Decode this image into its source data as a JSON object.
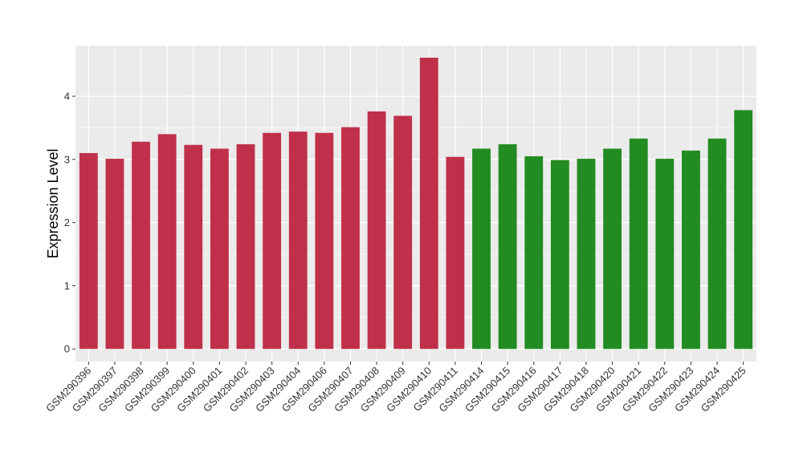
{
  "chart_data": {
    "type": "bar",
    "title": "",
    "xlabel": "",
    "ylabel": "Expression Level",
    "ylim": [
      -0.2,
      4.8
    ],
    "yticks": [
      0,
      1,
      2,
      3,
      4
    ],
    "grid": true,
    "legend": "none",
    "categories": [
      "GSM290396",
      "GSM290397",
      "GSM290398",
      "GSM290399",
      "GSM290400",
      "GSM290401",
      "GSM290402",
      "GSM290403",
      "GSM290404",
      "GSM290406",
      "GSM290407",
      "GSM290408",
      "GSM290409",
      "GSM290410",
      "GSM290411",
      "GSM290414",
      "GSM290415",
      "GSM290416",
      "GSM290417",
      "GSM290418",
      "GSM290420",
      "GSM290421",
      "GSM290422",
      "GSM290423",
      "GSM290424",
      "GSM290425"
    ],
    "values": [
      3.1,
      3.01,
      3.28,
      3.4,
      3.23,
      3.17,
      3.24,
      3.42,
      3.44,
      3.42,
      3.51,
      3.76,
      3.69,
      4.61,
      3.04,
      3.17,
      3.24,
      3.05,
      2.99,
      3.01,
      3.17,
      3.33,
      3.01,
      3.14,
      3.33,
      3.78
    ],
    "groups": [
      "a",
      "a",
      "a",
      "a",
      "a",
      "a",
      "a",
      "a",
      "a",
      "a",
      "a",
      "a",
      "a",
      "a",
      "a",
      "b",
      "b",
      "b",
      "b",
      "b",
      "b",
      "b",
      "b",
      "b",
      "b",
      "b"
    ],
    "colors": {
      "a": "#c0304a",
      "b": "#228b22"
    },
    "panel_background": "#ebebeb",
    "gridline_color": "#ffffff"
  }
}
